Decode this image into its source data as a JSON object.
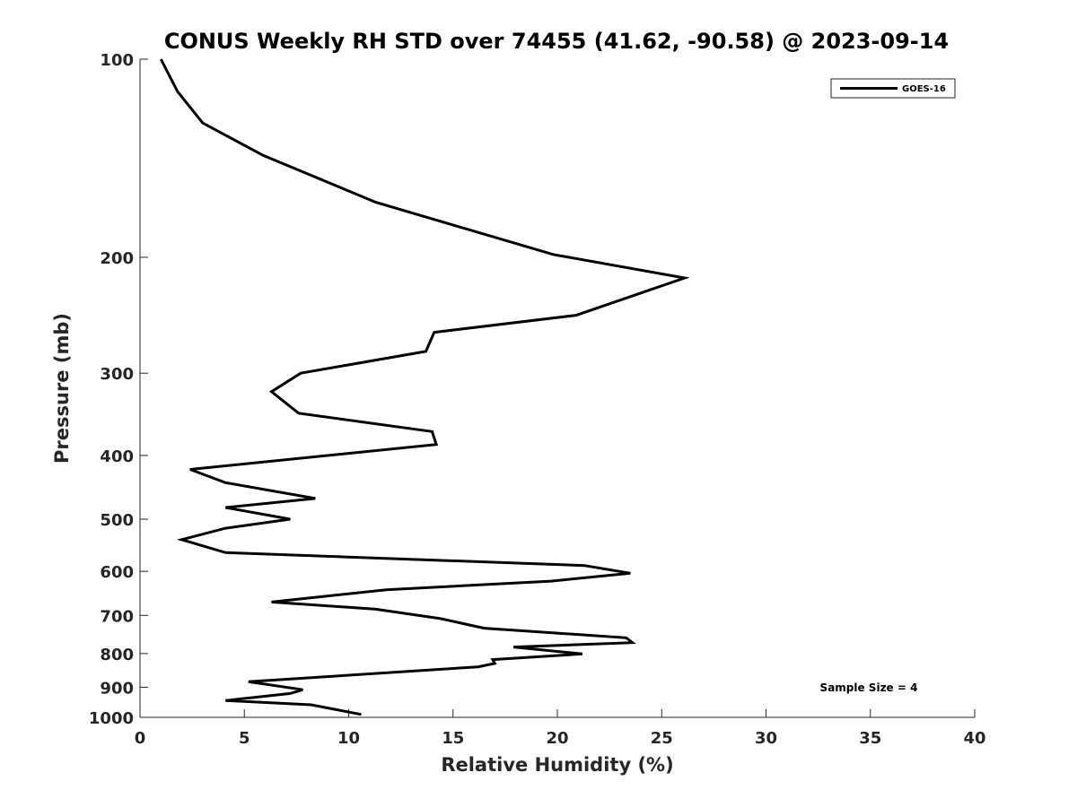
{
  "chart_data": {
    "type": "line",
    "title": "CONUS Weekly RH STD over 74455 (41.62, -90.58) @ 2023-09-14",
    "xlabel": "Relative Humidity (%)",
    "ylabel": "Pressure (mb)",
    "xlim": [
      0,
      40
    ],
    "ylim": [
      100,
      1000
    ],
    "y_scale": "log",
    "y_reversed": true,
    "x_ticks": [
      0,
      5,
      10,
      15,
      20,
      25,
      30,
      35,
      40
    ],
    "y_ticks": [
      100,
      200,
      300,
      400,
      500,
      600,
      700,
      800,
      900,
      1000
    ],
    "legend": {
      "position": "top-right",
      "entries": [
        "GOES-16"
      ]
    },
    "annotation": "Sample Size = 4",
    "series": [
      {
        "name": "GOES-16",
        "color": "#000000",
        "x": [
          1.0,
          1.8,
          3.0,
          5.9,
          11.3,
          19.8,
          26.1,
          20.9,
          14.1,
          13.7,
          7.7,
          6.3,
          7.6,
          14.0,
          14.2,
          2.4,
          4.1,
          8.4,
          4.1,
          7.2,
          4.1,
          2.0,
          4.1,
          21.3,
          23.5,
          19.7,
          11.8,
          6.3,
          11.3,
          14.4,
          16.5,
          23.3,
          23.6,
          17.9,
          21.2,
          16.9,
          17.0,
          16.2,
          5.2,
          7.8,
          7.2,
          4.1,
          8.2,
          10.6
        ],
        "y": [
          100,
          112,
          125,
          140,
          165,
          198,
          215,
          245,
          260,
          278,
          300,
          320,
          345,
          368,
          385,
          420,
          440,
          465,
          480,
          500,
          516,
          537,
          562,
          588,
          604,
          621,
          640,
          668,
          685,
          708,
          732,
          757,
          770,
          782,
          801,
          817,
          828,
          838,
          883,
          908,
          920,
          943,
          957,
          990
        ]
      }
    ]
  }
}
